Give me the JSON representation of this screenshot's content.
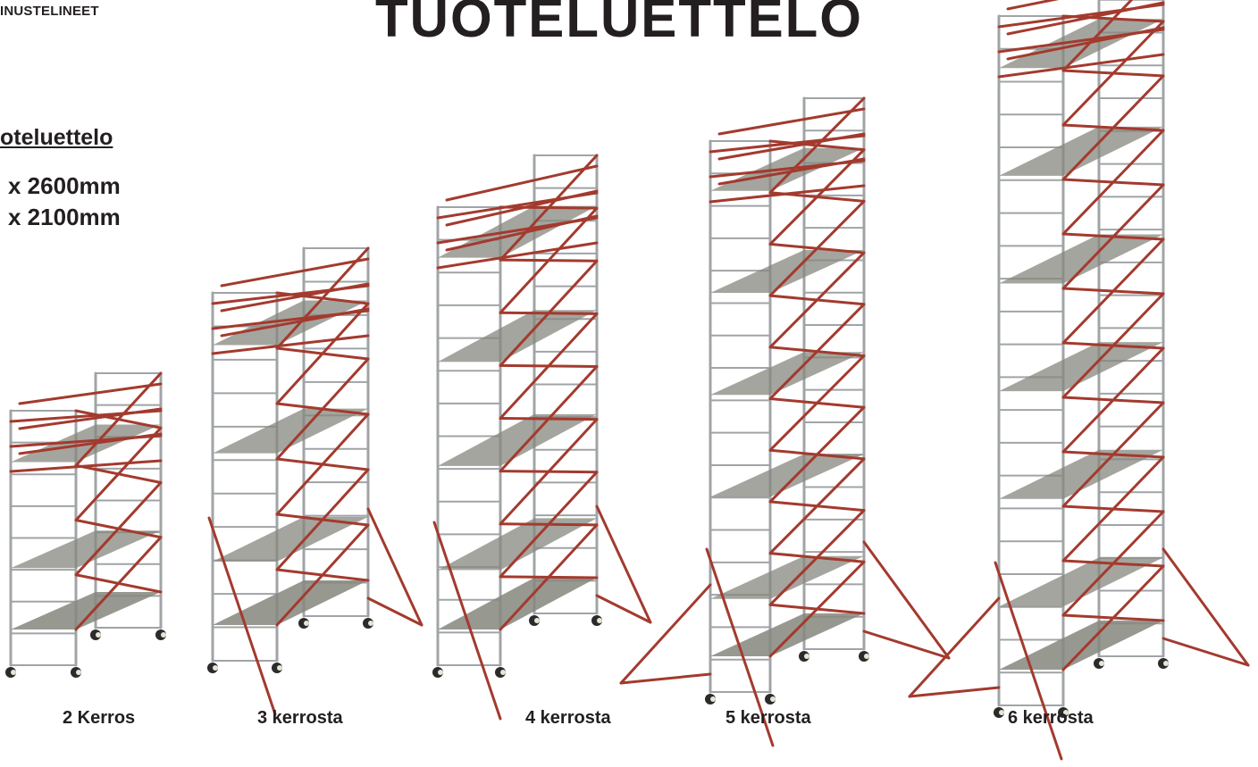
{
  "header": {
    "brand": "INUSTELINEET",
    "title": "TUOTELUETTELO"
  },
  "intro": {
    "subheading": "oteluettelo",
    "dimensions": [
      "x 2600mm",
      "x 2100mm"
    ]
  },
  "towers": [
    {
      "label": "2 Kerros",
      "levels": 2
    },
    {
      "label": "3 kerrosta",
      "levels": 3
    },
    {
      "label": "4 kerrosta",
      "levels": 4
    },
    {
      "label": "5 kerrosta",
      "levels": 5
    },
    {
      "label": "6 kerrosta",
      "levels": 6
    }
  ],
  "colors": {
    "frame": "#a0a4a6",
    "brace": "#a33a2e",
    "platform": "#85877e",
    "text": "#231f20"
  }
}
